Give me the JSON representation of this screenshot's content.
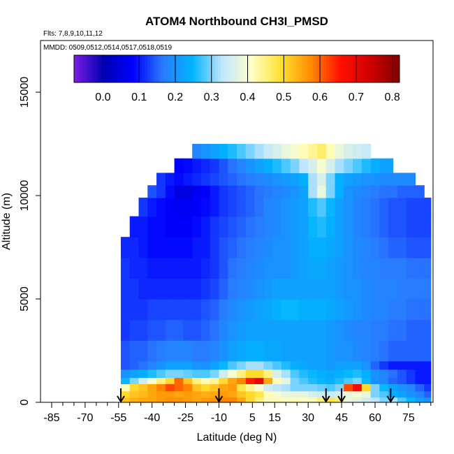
{
  "chart_data": {
    "type": "heatmap",
    "title": "ATOM4 Northbound CH3I_PMSD",
    "subtitle_flights": "Flts: 7,8,9,10,11,12",
    "subtitle_dates": "MMDD: 0509,0512,0514,0517,0518,0519",
    "xlabel": "Latitude (deg N)",
    "ylabel": "Altitude (m)",
    "xlim": [
      -90,
      86
    ],
    "ylim": [
      0,
      17500
    ],
    "x_ticks": [
      -85,
      -70,
      -55,
      -40,
      -25,
      -10,
      5,
      15,
      30,
      45,
      60,
      75
    ],
    "x_ticks_minor": [
      -80,
      -75,
      -65,
      -60,
      -50,
      -45,
      -35,
      -30,
      -20,
      -15,
      -5,
      0,
      10,
      20,
      25,
      35,
      40,
      50,
      55,
      65,
      70,
      80,
      85
    ],
    "x_tick_labels": [
      "-85",
      "-70",
      "-55",
      "-40",
      "-25",
      "-10",
      "5",
      "15",
      "30",
      "45",
      "60",
      "75"
    ],
    "y_ticks": [
      0,
      5000,
      10000,
      15000
    ],
    "y_tick_labels": [
      "0",
      "5000",
      "10000",
      "15000"
    ],
    "colorbar": {
      "ticks": [
        0.0,
        0.1,
        0.2,
        0.3,
        0.4,
        0.5,
        0.6,
        0.7,
        0.8
      ],
      "tick_labels": [
        "0.0",
        "0.1",
        "0.2",
        "0.3",
        "0.4",
        "0.5",
        "0.6",
        "0.7",
        "0.8"
      ],
      "range": [
        -0.08,
        0.82
      ],
      "colors": [
        "#7a1ee0",
        "#0000b4",
        "#0000ff",
        "#2a7aff",
        "#00b4ff",
        "#bfe6ff",
        "#ffffc8",
        "#ffe030",
        "#ff8c00",
        "#ff1000",
        "#d00000",
        "#800000"
      ]
    },
    "flight_markers_lat": [
      -54,
      -10,
      38,
      45,
      67
    ],
    "lat_bins": [
      -54,
      -50,
      -46,
      -42,
      -38,
      -34,
      -30,
      -26,
      -22,
      -18,
      -14,
      -10,
      -6,
      -2,
      2,
      6,
      10,
      14,
      18,
      22,
      26,
      30,
      34,
      38,
      42,
      46,
      50,
      54,
      58,
      62,
      66,
      70,
      74,
      78,
      82
    ],
    "alt_layers": [
      {
        "alt_range": [
          0,
          250
        ],
        "lat_range": [
          -54,
          85
        ],
        "values": [
          0.52,
          0.54,
          0.55,
          0.55,
          0.56,
          0.57,
          0.57,
          0.56,
          0.55,
          0.56,
          0.57,
          0.58,
          0.58,
          0.55,
          0.5,
          0.45,
          0.42,
          0.42,
          0.42,
          0.42,
          0.41,
          0.42,
          0.45,
          0.48,
          0.46,
          0.38,
          0.37,
          0.35,
          0.33,
          0.3,
          0.32,
          0.28,
          0.25,
          0.22,
          0.2
        ]
      },
      {
        "alt_range": [
          250,
          550
        ],
        "lat_range": [
          -54,
          85
        ],
        "values": [
          0.5,
          0.52,
          0.53,
          0.55,
          0.56,
          0.56,
          0.55,
          0.56,
          0.55,
          0.54,
          0.55,
          0.56,
          0.55,
          0.52,
          0.5,
          0.48,
          0.42,
          0.4,
          0.38,
          0.38,
          0.38,
          0.36,
          0.35,
          0.34,
          0.36,
          0.38,
          0.4,
          0.38,
          0.3,
          0.28,
          0.24,
          0.22,
          0.2,
          0.18,
          0.15
        ]
      },
      {
        "alt_range": [
          550,
          900
        ],
        "lat_range": [
          -54,
          85
        ],
        "values": [
          0.42,
          0.5,
          0.52,
          0.55,
          0.58,
          0.62,
          0.6,
          0.58,
          0.52,
          0.5,
          0.52,
          0.55,
          0.56,
          0.48,
          0.44,
          0.4,
          0.35,
          0.33,
          0.32,
          0.3,
          0.3,
          0.3,
          0.29,
          0.28,
          0.3,
          0.62,
          0.68,
          0.5,
          0.3,
          0.25,
          0.22,
          0.2,
          0.18,
          0.15,
          0.12
        ]
      },
      {
        "alt_range": [
          900,
          1200
        ],
        "lat_range": [
          -54,
          85
        ],
        "values": [
          0.25,
          0.3,
          0.35,
          0.4,
          0.45,
          0.5,
          0.6,
          0.52,
          0.45,
          0.42,
          0.44,
          0.5,
          0.55,
          0.58,
          0.65,
          0.7,
          0.55,
          0.42,
          0.38,
          0.3,
          0.28,
          0.26,
          0.25,
          0.24,
          0.26,
          0.28,
          0.3,
          0.25,
          0.2,
          0.18,
          0.15,
          0.14,
          0.12,
          0.1,
          0.1
        ]
      },
      {
        "alt_range": [
          1200,
          1600
        ],
        "lat_range": [
          -54,
          85
        ],
        "values": [
          0.2,
          0.22,
          0.24,
          0.26,
          0.28,
          0.3,
          0.3,
          0.29,
          0.28,
          0.28,
          0.3,
          0.35,
          0.4,
          0.45,
          0.5,
          0.5,
          0.45,
          0.36,
          0.32,
          0.28,
          0.26,
          0.25,
          0.24,
          0.23,
          0.24,
          0.25,
          0.26,
          0.24,
          0.2,
          0.18,
          0.16,
          0.14,
          0.12,
          0.1,
          0.1
        ]
      },
      {
        "alt_range": [
          1600,
          2000
        ],
        "lat_range": [
          -54,
          85
        ],
        "values": [
          0.14,
          0.15,
          0.16,
          0.18,
          0.2,
          0.22,
          0.22,
          0.22,
          0.2,
          0.2,
          0.22,
          0.25,
          0.28,
          0.3,
          0.32,
          0.32,
          0.3,
          0.28,
          0.26,
          0.24,
          0.23,
          0.22,
          0.22,
          0.21,
          0.22,
          0.22,
          0.22,
          0.2,
          0.15,
          0.12,
          0.1,
          0.1,
          0.1,
          0.1,
          0.1
        ]
      },
      {
        "alt_range": [
          2000,
          3000
        ],
        "lat_range": [
          -54,
          85
        ],
        "values": [
          0.14,
          0.15,
          0.15,
          0.16,
          0.17,
          0.18,
          0.18,
          0.18,
          0.17,
          0.17,
          0.18,
          0.2,
          0.22,
          0.23,
          0.24,
          0.24,
          0.23,
          0.23,
          0.22,
          0.22,
          0.22,
          0.22,
          0.22,
          0.21,
          0.2,
          0.2,
          0.19,
          0.18,
          0.17,
          0.16,
          0.15,
          0.15,
          0.15,
          0.15,
          0.15
        ]
      },
      {
        "alt_range": [
          3000,
          4000
        ],
        "lat_range": [
          -54,
          85
        ],
        "values": [
          0.12,
          0.13,
          0.13,
          0.14,
          0.14,
          0.15,
          0.15,
          0.14,
          0.14,
          0.15,
          0.16,
          0.18,
          0.2,
          0.21,
          0.22,
          0.22,
          0.22,
          0.22,
          0.22,
          0.22,
          0.22,
          0.22,
          0.22,
          0.21,
          0.2,
          0.19,
          0.18,
          0.18,
          0.17,
          0.17,
          0.16,
          0.16,
          0.15,
          0.15,
          0.15
        ]
      },
      {
        "alt_range": [
          4000,
          5000
        ],
        "lat_range": [
          -54,
          85
        ],
        "values": [
          0.12,
          0.12,
          0.12,
          0.13,
          0.13,
          0.13,
          0.13,
          0.13,
          0.13,
          0.14,
          0.15,
          0.17,
          0.19,
          0.2,
          0.21,
          0.22,
          0.23,
          0.24,
          0.25,
          0.25,
          0.24,
          0.24,
          0.24,
          0.23,
          0.22,
          0.21,
          0.2,
          0.19,
          0.18,
          0.18,
          0.17,
          0.17,
          0.16,
          0.16,
          0.16
        ]
      },
      {
        "alt_range": [
          5000,
          6000
        ],
        "lat_range": [
          -54,
          85
        ],
        "values": [
          0.12,
          0.12,
          0.11,
          0.11,
          0.11,
          0.11,
          0.11,
          0.11,
          0.11,
          0.12,
          0.13,
          0.15,
          0.17,
          0.18,
          0.19,
          0.2,
          0.21,
          0.22,
          0.22,
          0.22,
          0.22,
          0.22,
          0.22,
          0.22,
          0.21,
          0.2,
          0.2,
          0.19,
          0.18,
          0.18,
          0.18,
          0.17,
          0.17,
          0.17,
          0.17
        ]
      },
      {
        "alt_range": [
          6000,
          7000
        ],
        "lat_range": [
          -54,
          85
        ],
        "values": [
          0.12,
          0.11,
          0.11,
          0.1,
          0.1,
          0.1,
          0.1,
          0.1,
          0.1,
          0.11,
          0.12,
          0.14,
          0.16,
          0.17,
          0.18,
          0.19,
          0.2,
          0.2,
          0.2,
          0.21,
          0.22,
          0.23,
          0.23,
          0.22,
          0.21,
          0.2,
          0.19,
          0.18,
          0.18,
          0.17,
          0.17,
          0.17,
          0.16,
          0.16,
          0.16
        ]
      },
      {
        "alt_range": [
          7000,
          8000
        ],
        "lat_range": [
          -54,
          85
        ],
        "values": [
          0.11,
          0.11,
          0.1,
          0.09,
          0.09,
          0.09,
          0.09,
          0.09,
          0.1,
          0.1,
          0.12,
          0.14,
          0.15,
          0.16,
          0.17,
          0.18,
          0.19,
          0.2,
          0.2,
          0.21,
          0.22,
          0.24,
          0.24,
          0.23,
          0.22,
          0.2,
          0.19,
          0.18,
          0.17,
          0.16,
          0.15,
          0.15,
          0.14,
          0.14,
          0.14
        ]
      },
      {
        "alt_range": [
          8000,
          9000
        ],
        "lat_range": [
          -51,
          85
        ],
        "values": [
          null,
          0.1,
          0.1,
          0.09,
          0.09,
          0.08,
          0.08,
          0.08,
          0.09,
          0.1,
          0.12,
          0.13,
          0.14,
          0.15,
          0.16,
          0.17,
          0.18,
          0.19,
          0.2,
          0.21,
          0.22,
          0.25,
          0.26,
          0.24,
          0.22,
          0.2,
          0.18,
          0.17,
          0.16,
          0.15,
          0.14,
          0.14,
          0.13,
          0.13,
          0.13
        ]
      },
      {
        "alt_range": [
          9000,
          9900
        ],
        "lat_range": [
          -46,
          85
        ],
        "values": [
          null,
          null,
          0.12,
          0.1,
          0.09,
          0.08,
          0.07,
          0.07,
          0.08,
          0.09,
          0.1,
          0.12,
          0.13,
          0.14,
          0.15,
          0.16,
          0.18,
          0.19,
          0.2,
          0.21,
          0.22,
          0.26,
          0.28,
          0.25,
          0.22,
          0.2,
          0.18,
          0.17,
          0.16,
          0.15,
          0.14,
          0.14,
          0.13,
          0.13,
          0.13
        ]
      },
      {
        "alt_range": [
          9900,
          10500
        ],
        "lat_range": [
          -42,
          82
        ],
        "values": [
          null,
          null,
          null,
          0.14,
          0.12,
          0.09,
          0.05,
          0.05,
          0.07,
          0.08,
          0.1,
          0.12,
          0.13,
          0.14,
          0.15,
          0.16,
          0.17,
          0.18,
          0.19,
          0.2,
          0.22,
          0.32,
          0.38,
          0.3,
          0.24,
          0.2,
          0.19,
          0.18,
          0.17,
          0.16,
          0.16,
          0.15,
          0.15,
          0.15,
          null
        ]
      },
      {
        "alt_range": [
          10500,
          11100
        ],
        "lat_range": [
          -38,
          78
        ],
        "values": [
          null,
          null,
          null,
          null,
          0.12,
          0.1,
          0.09,
          0.1,
          0.11,
          0.12,
          0.13,
          0.14,
          0.15,
          0.16,
          0.17,
          0.18,
          0.19,
          0.2,
          0.21,
          0.22,
          0.24,
          0.32,
          0.36,
          0.3,
          0.24,
          0.22,
          0.21,
          0.2,
          0.2,
          0.19,
          0.19,
          0.19,
          0.19,
          0.19,
          null
        ]
      },
      {
        "alt_range": [
          11100,
          11800
        ],
        "lat_range": [
          -30,
          68
        ],
        "values": [
          null,
          null,
          null,
          null,
          null,
          null,
          0.08,
          0.09,
          0.1,
          0.11,
          0.12,
          0.14,
          0.16,
          0.18,
          0.2,
          0.22,
          0.24,
          0.26,
          0.28,
          0.3,
          0.33,
          0.36,
          0.4,
          0.36,
          0.32,
          0.3,
          0.28,
          0.26,
          0.24,
          0.22,
          0.22,
          null,
          null,
          null,
          null
        ]
      },
      {
        "alt_range": [
          11800,
          12500
        ],
        "lat_range": [
          -22,
          58
        ],
        "values": [
          null,
          null,
          null,
          null,
          null,
          null,
          null,
          null,
          0.18,
          0.2,
          0.22,
          0.24,
          0.26,
          0.28,
          0.3,
          0.32,
          0.34,
          0.36,
          0.38,
          0.4,
          0.42,
          0.44,
          0.46,
          0.42,
          0.38,
          0.36,
          0.35,
          0.34,
          0.34,
          null,
          null,
          null,
          null,
          null,
          null
        ]
      }
    ]
  }
}
